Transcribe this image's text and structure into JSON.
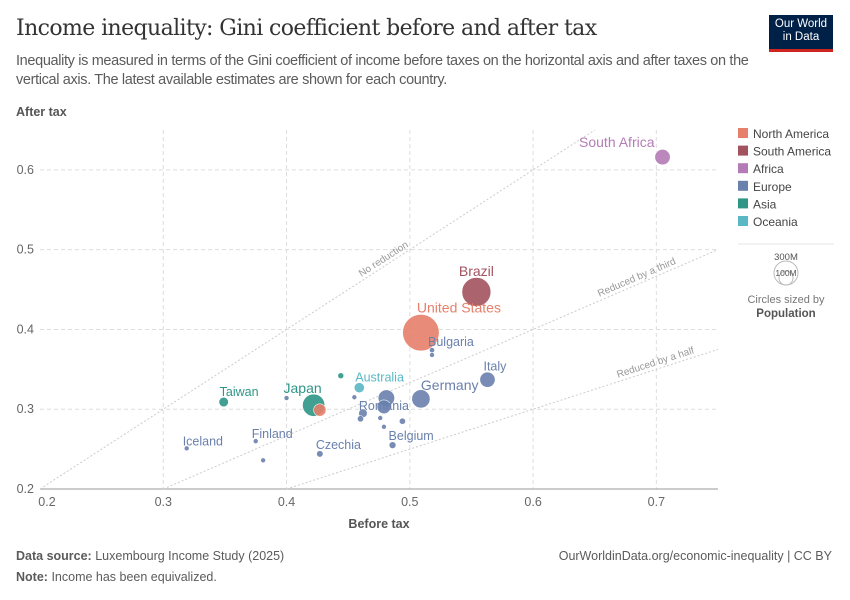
{
  "header": {
    "title": "Income inequality: Gini coefficient before and after tax",
    "subtitle": "Inequality is measured in terms of the Gini coefficient of income before taxes on the horizontal axis and after taxes on the vertical axis. The latest available estimates are shown for each country.",
    "logo_line1": "Our World",
    "logo_line2": "in Data"
  },
  "footer": {
    "source_label": "Data source:",
    "source": "Luxembourg Income Study (2025)",
    "url": "OurWorldinData.org/economic-inequality | CC BY",
    "note_label": "Note:",
    "note": "Income has been equivalized."
  },
  "chart_data": {
    "type": "scatter",
    "xlabel": "Before tax",
    "ylabel": "After tax",
    "xlim": [
      0.2,
      0.75
    ],
    "ylim": [
      0.2,
      0.65
    ],
    "xticks": [
      "0.2",
      "0.3",
      "0.4",
      "0.5",
      "0.6",
      "0.7"
    ],
    "yticks": [
      "0.2",
      "0.3",
      "0.4",
      "0.5",
      "0.6"
    ],
    "grid": true,
    "legend_position": "right",
    "legend": [
      {
        "name": "North America",
        "color": "#e6806b"
      },
      {
        "name": "South America",
        "color": "#a2535f"
      },
      {
        "name": "Africa",
        "color": "#b47cb7"
      },
      {
        "name": "Europe",
        "color": "#6a80ad"
      },
      {
        "name": "Asia",
        "color": "#2e9687"
      },
      {
        "name": "Oceania",
        "color": "#5ab8c4"
      }
    ],
    "size_legend": {
      "large": "300M",
      "small": "100M",
      "caption": "Circles sized by",
      "variable": "Population"
    },
    "reference_lines": [
      {
        "label": "No reduction",
        "slope": 1
      },
      {
        "label": "Reduced by a third",
        "slope": 0.6667
      },
      {
        "label": "Reduced by a half",
        "slope": 0.5
      }
    ],
    "points": [
      {
        "label": "South Africa",
        "region": "Africa",
        "x": 0.705,
        "y": 0.616,
        "pop": 60
      },
      {
        "label": "Brazil",
        "region": "South America",
        "x": 0.554,
        "y": 0.447,
        "pop": 210
      },
      {
        "label": "United States",
        "region": "North America",
        "x": 0.509,
        "y": 0.396,
        "pop": 335
      },
      {
        "label": "Bulgaria",
        "region": "Europe",
        "x": 0.518,
        "y": 0.374,
        "pop": 7
      },
      {
        "label": "",
        "region": "Europe",
        "x": 0.518,
        "y": 0.368,
        "pop": 3
      },
      {
        "label": "Italy",
        "region": "Europe",
        "x": 0.563,
        "y": 0.337,
        "pop": 59
      },
      {
        "label": "Germany",
        "region": "Europe",
        "x": 0.509,
        "y": 0.313,
        "pop": 84
      },
      {
        "label": "Taiwan",
        "region": "Asia",
        "x": 0.349,
        "y": 0.309,
        "pop": 23
      },
      {
        "label": "Japan",
        "region": "Asia",
        "x": 0.422,
        "y": 0.305,
        "pop": 125
      },
      {
        "label": "",
        "region": "North America",
        "x": 0.427,
        "y": 0.299,
        "pop": 39
      },
      {
        "label": "Australia",
        "region": "Oceania",
        "x": 0.459,
        "y": 0.327,
        "pop": 26
      },
      {
        "label": "",
        "region": "Asia",
        "x": 0.444,
        "y": 0.342,
        "pop": 9
      },
      {
        "label": "",
        "region": "Europe",
        "x": 0.4,
        "y": 0.314,
        "pop": 6
      },
      {
        "label": "",
        "region": "Europe",
        "x": 0.481,
        "y": 0.314,
        "pop": 68
      },
      {
        "label": "Romania",
        "region": "Europe",
        "x": 0.479,
        "y": 0.303,
        "pop": 48
      },
      {
        "label": "",
        "region": "Europe",
        "x": 0.455,
        "y": 0.315,
        "pop": 2
      },
      {
        "label": "",
        "region": "Europe",
        "x": 0.462,
        "y": 0.295,
        "pop": 19
      },
      {
        "label": "",
        "region": "Europe",
        "x": 0.46,
        "y": 0.288,
        "pop": 10
      },
      {
        "label": "",
        "region": "Europe",
        "x": 0.476,
        "y": 0.289,
        "pop": 5
      },
      {
        "label": "",
        "region": "Europe",
        "x": 0.494,
        "y": 0.285,
        "pop": 10
      },
      {
        "label": "",
        "region": "Europe",
        "x": 0.479,
        "y": 0.278,
        "pop": 4
      },
      {
        "label": "Czechia",
        "region": "Europe",
        "x": 0.427,
        "y": 0.244,
        "pop": 11
      },
      {
        "label": "Belgium",
        "region": "Europe",
        "x": 0.486,
        "y": 0.255,
        "pop": 12
      },
      {
        "label": "Finland",
        "region": "Europe",
        "x": 0.375,
        "y": 0.26,
        "pop": 6
      },
      {
        "label": "Iceland",
        "region": "Europe",
        "x": 0.319,
        "y": 0.251,
        "pop": 0.4
      },
      {
        "label": "",
        "region": "Europe",
        "x": 0.381,
        "y": 0.236,
        "pop": 5
      }
    ]
  }
}
